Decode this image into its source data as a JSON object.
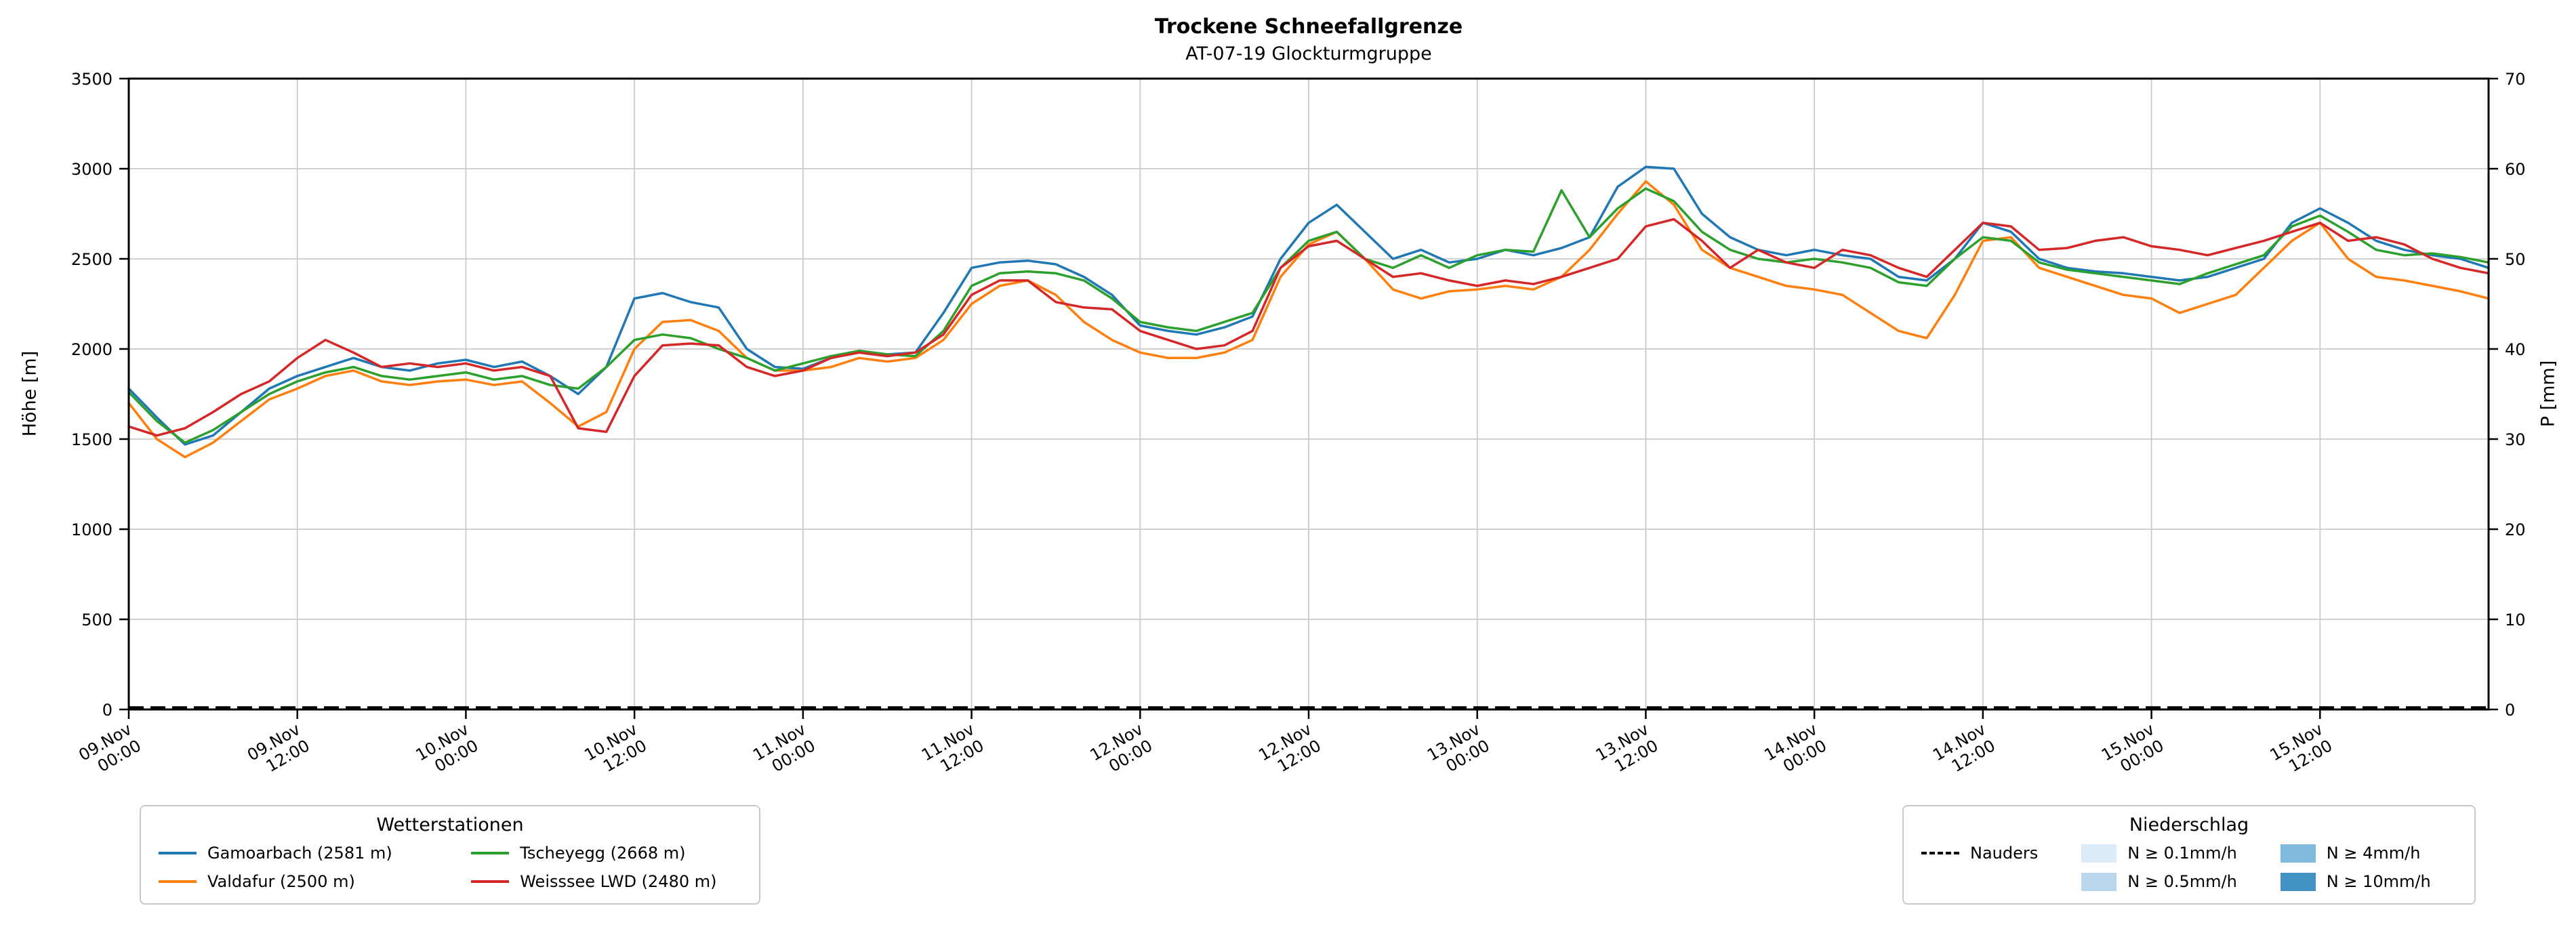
{
  "chart_data": {
    "type": "line",
    "title": "Trockene Schneefallgrenze",
    "subtitle": "AT-07-19 Glockturmgruppe",
    "ylabel_left": "Höhe [m]",
    "ylabel_right": "P [mm]",
    "ylim_left": [
      0,
      3500
    ],
    "ylim_right": [
      0,
      70
    ],
    "yticks_left": [
      0,
      500,
      1000,
      1500,
      2000,
      2500,
      3000,
      3500
    ],
    "yticks_right": [
      0,
      10,
      20,
      30,
      40,
      50,
      60,
      70
    ],
    "grid": true,
    "x_hours_start": 0,
    "x_hours_end": 168,
    "x_step_hours": 2,
    "x_ticks": [
      {
        "h": 0,
        "date": "09.Nov",
        "time": "00:00"
      },
      {
        "h": 12,
        "date": "09.Nov",
        "time": "12:00"
      },
      {
        "h": 24,
        "date": "10.Nov",
        "time": "00:00"
      },
      {
        "h": 36,
        "date": "10.Nov",
        "time": "12:00"
      },
      {
        "h": 48,
        "date": "11.Nov",
        "time": "00:00"
      },
      {
        "h": 60,
        "date": "11.Nov",
        "time": "12:00"
      },
      {
        "h": 72,
        "date": "12.Nov",
        "time": "00:00"
      },
      {
        "h": 84,
        "date": "12.Nov",
        "time": "12:00"
      },
      {
        "h": 96,
        "date": "13.Nov",
        "time": "00:00"
      },
      {
        "h": 108,
        "date": "13.Nov",
        "time": "12:00"
      },
      {
        "h": 120,
        "date": "14.Nov",
        "time": "00:00"
      },
      {
        "h": 132,
        "date": "14.Nov",
        "time": "12:00"
      },
      {
        "h": 144,
        "date": "15.Nov",
        "time": "00:00"
      },
      {
        "h": 156,
        "date": "15.Nov",
        "time": "12:00"
      }
    ],
    "series": [
      {
        "name": "Gamoarbach (2581 m)",
        "color": "#1f77b4",
        "axis": "left",
        "values": [
          1780,
          1620,
          1470,
          1520,
          1650,
          1780,
          1850,
          1900,
          1950,
          1900,
          1880,
          1920,
          1940,
          1900,
          1930,
          1850,
          1750,
          1900,
          2280,
          2310,
          2260,
          2230,
          2000,
          1900,
          1890,
          1950,
          1990,
          1970,
          1980,
          2200,
          2450,
          2480,
          2490,
          2470,
          2400,
          2300,
          2130,
          2100,
          2080,
          2120,
          2180,
          2500,
          2700,
          2800,
          2650,
          2500,
          2550,
          2480,
          2500,
          2550,
          2520,
          2560,
          2620,
          2900,
          3010,
          3000,
          2750,
          2620,
          2550,
          2520,
          2550,
          2520,
          2500,
          2400,
          2380,
          2500,
          2700,
          2650,
          2500,
          2450,
          2430,
          2420,
          2400,
          2380,
          2400,
          2450,
          2500,
          2700,
          2780,
          2700,
          2600,
          2550,
          2520,
          2500,
          2450
        ]
      },
      {
        "name": "Valdafur (2500 m)",
        "color": "#ff7f0e",
        "axis": "left",
        "values": [
          1700,
          1500,
          1400,
          1480,
          1600,
          1720,
          1780,
          1850,
          1880,
          1820,
          1800,
          1820,
          1830,
          1800,
          1820,
          1700,
          1570,
          1650,
          2000,
          2150,
          2160,
          2100,
          1950,
          1880,
          1880,
          1900,
          1950,
          1930,
          1950,
          2050,
          2250,
          2350,
          2380,
          2300,
          2150,
          2050,
          1980,
          1950,
          1950,
          1980,
          2050,
          2400,
          2580,
          2650,
          2500,
          2330,
          2280,
          2320,
          2330,
          2350,
          2330,
          2400,
          2550,
          2750,
          2930,
          2800,
          2550,
          2450,
          2400,
          2350,
          2330,
          2300,
          2200,
          2100,
          2060,
          2300,
          2600,
          2620,
          2450,
          2400,
          2350,
          2300,
          2280,
          2200,
          2250,
          2300,
          2450,
          2600,
          2700,
          2500,
          2400,
          2380,
          2350,
          2320,
          2280
        ]
      },
      {
        "name": "Tscheyegg (2668 m)",
        "color": "#2ca02c",
        "axis": "left",
        "values": [
          1760,
          1600,
          1480,
          1550,
          1650,
          1750,
          1820,
          1870,
          1900,
          1850,
          1830,
          1850,
          1870,
          1830,
          1850,
          1800,
          1780,
          1900,
          2050,
          2080,
          2060,
          2000,
          1950,
          1880,
          1920,
          1960,
          1990,
          1970,
          1960,
          2100,
          2350,
          2420,
          2430,
          2420,
          2380,
          2280,
          2150,
          2120,
          2100,
          2150,
          2200,
          2450,
          2600,
          2650,
          2500,
          2450,
          2520,
          2450,
          2520,
          2550,
          2540,
          2880,
          2620,
          2780,
          2890,
          2820,
          2650,
          2550,
          2500,
          2480,
          2500,
          2480,
          2450,
          2370,
          2350,
          2500,
          2620,
          2600,
          2480,
          2440,
          2420,
          2400,
          2380,
          2360,
          2420,
          2470,
          2520,
          2680,
          2740,
          2650,
          2550,
          2520,
          2530,
          2510,
          2480
        ]
      },
      {
        "name": "Weisssee LWD (2480 m)",
        "color": "#d62728",
        "axis": "left",
        "values": [
          1570,
          1520,
          1560,
          1650,
          1750,
          1820,
          1950,
          2050,
          1980,
          1900,
          1920,
          1900,
          1920,
          1880,
          1900,
          1850,
          1560,
          1540,
          1850,
          2020,
          2030,
          2020,
          1900,
          1850,
          1880,
          1950,
          1980,
          1960,
          1980,
          2080,
          2300,
          2380,
          2380,
          2260,
          2230,
          2220,
          2100,
          2050,
          2000,
          2020,
          2100,
          2450,
          2570,
          2600,
          2500,
          2400,
          2420,
          2380,
          2350,
          2380,
          2360,
          2400,
          2450,
          2500,
          2680,
          2720,
          2600,
          2450,
          2550,
          2480,
          2450,
          2550,
          2520,
          2450,
          2400,
          2550,
          2700,
          2680,
          2550,
          2560,
          2600,
          2620,
          2570,
          2550,
          2520,
          2560,
          2600,
          2650,
          2700,
          2600,
          2620,
          2580,
          2500,
          2450,
          2420
        ]
      },
      {
        "name": "Nauders",
        "color": "#000000",
        "axis": "right",
        "linestyle": "dashed",
        "values_constant": 0
      }
    ]
  },
  "legends": {
    "stations": {
      "title": "Wetterstationen",
      "items": [
        {
          "label": "Gamoarbach (2581 m)",
          "color": "#1f77b4"
        },
        {
          "label": "Valdafur (2500 m)",
          "color": "#ff7f0e"
        },
        {
          "label": "Tscheyegg (2668 m)",
          "color": "#2ca02c"
        },
        {
          "label": "Weisssee LWD (2480 m)",
          "color": "#d62728"
        }
      ]
    },
    "precip": {
      "title": "Niederschlag",
      "line_items": [
        {
          "label": "Nauders",
          "color": "#000000",
          "style": "dashed"
        }
      ],
      "patch_items": [
        {
          "label": "N ≥ 0.1mm/h",
          "color": "#ddeaf7"
        },
        {
          "label": "N ≥ 0.5mm/h",
          "color": "#bad6eb"
        },
        {
          "label": "N ≥ 4mm/h",
          "color": "#7fb9dd"
        },
        {
          "label": "N ≥ 10mm/h",
          "color": "#4292c6"
        }
      ]
    }
  },
  "style": {
    "grid_color": "#cccccc",
    "spine_color": "#000000"
  }
}
